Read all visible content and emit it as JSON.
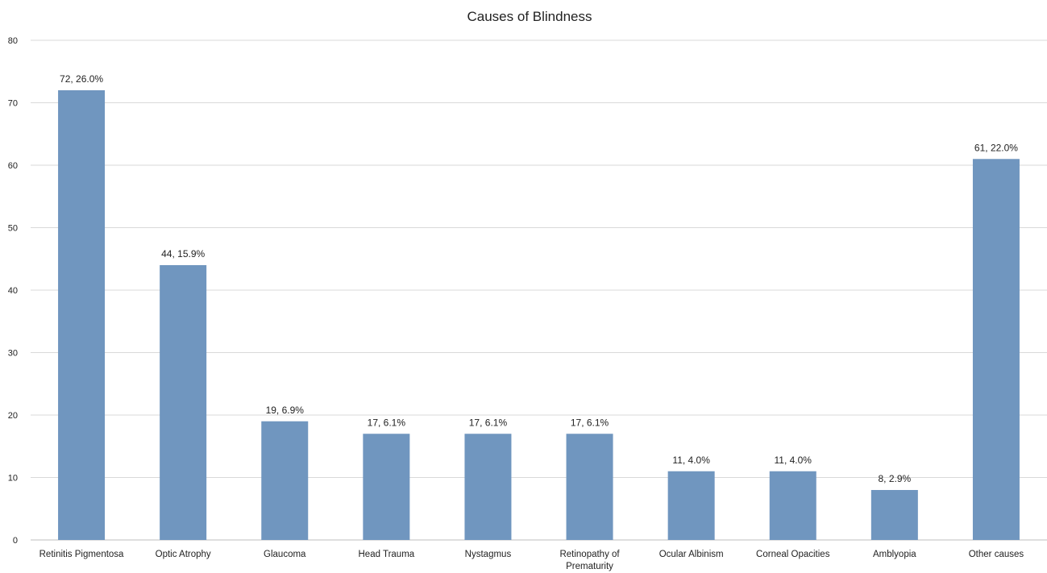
{
  "chart_data": {
    "type": "bar",
    "title": "Causes of Blindness",
    "xlabel": "",
    "ylabel": "",
    "ylim": [
      0,
      80
    ],
    "yticks": [
      0,
      10,
      20,
      30,
      40,
      50,
      60,
      70,
      80
    ],
    "grid": true,
    "legend": "none",
    "bar_color": "#7096bf",
    "categories": [
      "Retinitis Pigmentosa",
      "Optic Atrophy",
      "Glaucoma",
      "Head Trauma",
      "Nystagmus",
      "Retinopathy of Prematurity",
      "Ocular Albinism",
      "Corneal Opacities",
      "Amblyopia",
      "Other causes"
    ],
    "values": [
      72,
      44,
      19,
      17,
      17,
      17,
      11,
      11,
      8,
      61
    ],
    "data_labels": [
      "72, 26.0%",
      "44, 15.9%",
      "19, 6.9%",
      "17, 6.1%",
      "17, 6.1%",
      "17, 6.1%",
      "11, 4.0%",
      "11, 4.0%",
      "8, 2.9%",
      "61, 22.0%"
    ]
  }
}
